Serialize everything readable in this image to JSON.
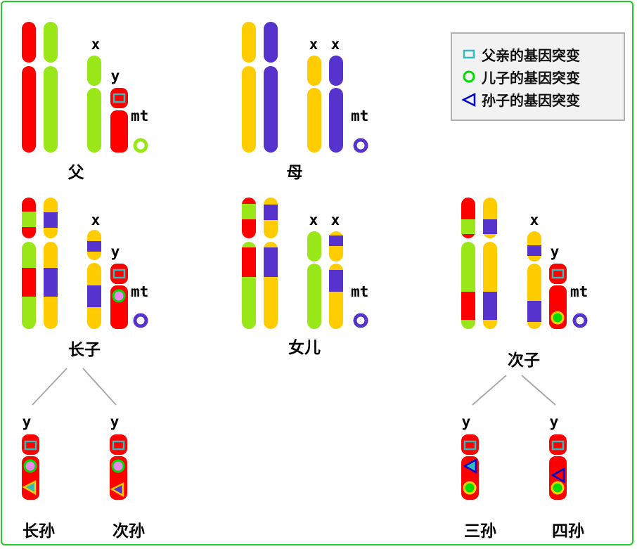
{
  "colors": {
    "father_a": "#ff0000",
    "father_b": "#99e619",
    "mother_a": "#ffcc00",
    "mother_b": "#5533cc",
    "frame": "#22cc22",
    "mut_father": "#33bbbb",
    "mut_son": "#00dd00",
    "mut_grandson": "#0000cc",
    "branch_line": "#aaaaaa"
  },
  "chromosome_labels": {
    "x": "x",
    "y": "y",
    "mt": "mt"
  },
  "captions": {
    "father": "父",
    "mother": "母",
    "eldest_son": "长子",
    "daughter": "女儿",
    "second_son": "次子",
    "eldest_grandson": "长孙",
    "second_grandson": "次孙",
    "third_grandson": "三孙",
    "fourth_grandson": "四孙"
  },
  "legend": {
    "items": [
      {
        "label": "父亲的基因突变",
        "icon": "square-marker-icon"
      },
      {
        "label": "儿子的基因突变",
        "icon": "circle-marker-icon"
      },
      {
        "label": "孙子的基因突变",
        "icon": "triangle-marker-icon"
      }
    ]
  }
}
